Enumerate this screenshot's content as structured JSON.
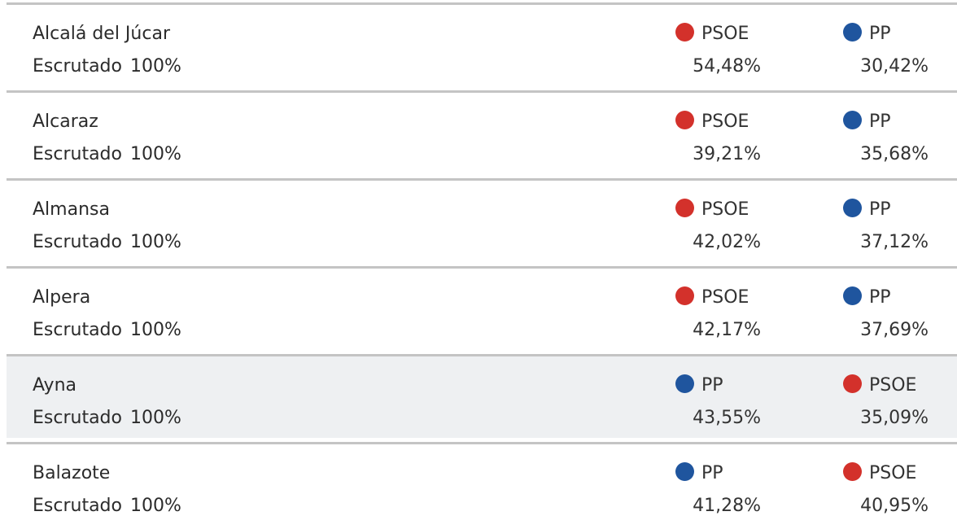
{
  "colors": {
    "PSOE": "#d3312b",
    "PP": "#1f559e"
  },
  "rows": [
    {
      "name": "Alcalá del Júcar",
      "scrutiny_label": "Escrutado",
      "scrutiny_pct": "100%",
      "first": {
        "party": "PSOE",
        "pct": "54,48%"
      },
      "second": {
        "party": "PP",
        "pct": "30,42%"
      }
    },
    {
      "name": "Alcaraz",
      "scrutiny_label": "Escrutado",
      "scrutiny_pct": "100%",
      "first": {
        "party": "PSOE",
        "pct": "39,21%"
      },
      "second": {
        "party": "PP",
        "pct": "35,68%"
      }
    },
    {
      "name": "Almansa",
      "scrutiny_label": "Escrutado",
      "scrutiny_pct": "100%",
      "first": {
        "party": "PSOE",
        "pct": "42,02%"
      },
      "second": {
        "party": "PP",
        "pct": "37,12%"
      }
    },
    {
      "name": "Alpera",
      "scrutiny_label": "Escrutado",
      "scrutiny_pct": "100%",
      "first": {
        "party": "PSOE",
        "pct": "42,17%"
      },
      "second": {
        "party": "PP",
        "pct": "37,69%"
      }
    },
    {
      "name": "Ayna",
      "scrutiny_label": "Escrutado",
      "scrutiny_pct": "100%",
      "first": {
        "party": "PP",
        "pct": "43,55%"
      },
      "second": {
        "party": "PSOE",
        "pct": "35,09%"
      }
    },
    {
      "name": "Balazote",
      "scrutiny_label": "Escrutado",
      "scrutiny_pct": "100%",
      "first": {
        "party": "PP",
        "pct": "41,28%"
      },
      "second": {
        "party": "PSOE",
        "pct": "40,95%"
      }
    }
  ]
}
